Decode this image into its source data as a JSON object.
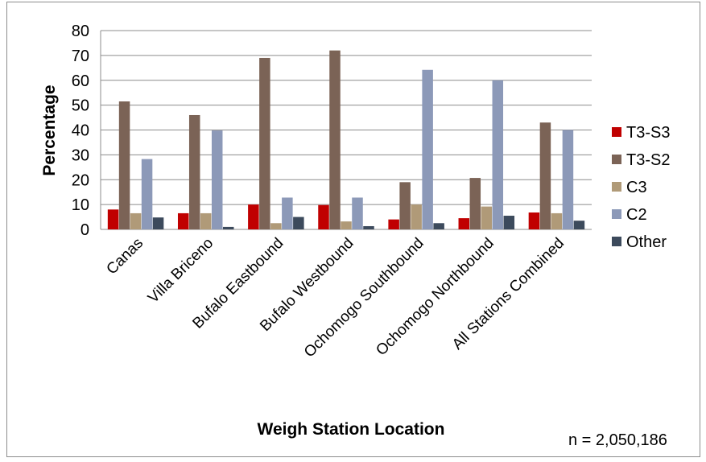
{
  "chart_data": {
    "type": "bar",
    "title": "",
    "xlabel": "Weigh Station Location",
    "ylabel": "Percentage",
    "ylim": [
      0,
      80
    ],
    "yticks": [
      0,
      10,
      20,
      30,
      40,
      50,
      60,
      70,
      80
    ],
    "grid": true,
    "legend_position": "right",
    "categories": [
      "Canas",
      "Villa Briceno",
      "Bufalo Eastbound",
      "Bufalo Westbound",
      "Ochomogo Southbound",
      "Ochomogo Northbound",
      "All Stations Combined"
    ],
    "series": [
      {
        "name": "T3-S3",
        "color": "#c00000",
        "values": [
          8.0,
          6.5,
          10.0,
          9.8,
          4.0,
          4.5,
          6.8
        ]
      },
      {
        "name": "T3-S2",
        "color": "#7b6356",
        "values": [
          51.5,
          46.0,
          69.0,
          72.0,
          19.0,
          20.7,
          43.0
        ]
      },
      {
        "name": "C3",
        "color": "#b09a78",
        "values": [
          6.5,
          6.5,
          2.5,
          3.2,
          10.0,
          9.2,
          6.5
        ]
      },
      {
        "name": "C2",
        "color": "#8c99b8",
        "values": [
          28.3,
          39.8,
          12.8,
          12.8,
          64.2,
          60.0,
          40.0
        ]
      },
      {
        "name": "Other",
        "color": "#3c4a5c",
        "values": [
          4.8,
          1.0,
          5.0,
          1.3,
          2.5,
          5.5,
          3.5
        ]
      }
    ],
    "annotation": "n = 2,050,186"
  }
}
